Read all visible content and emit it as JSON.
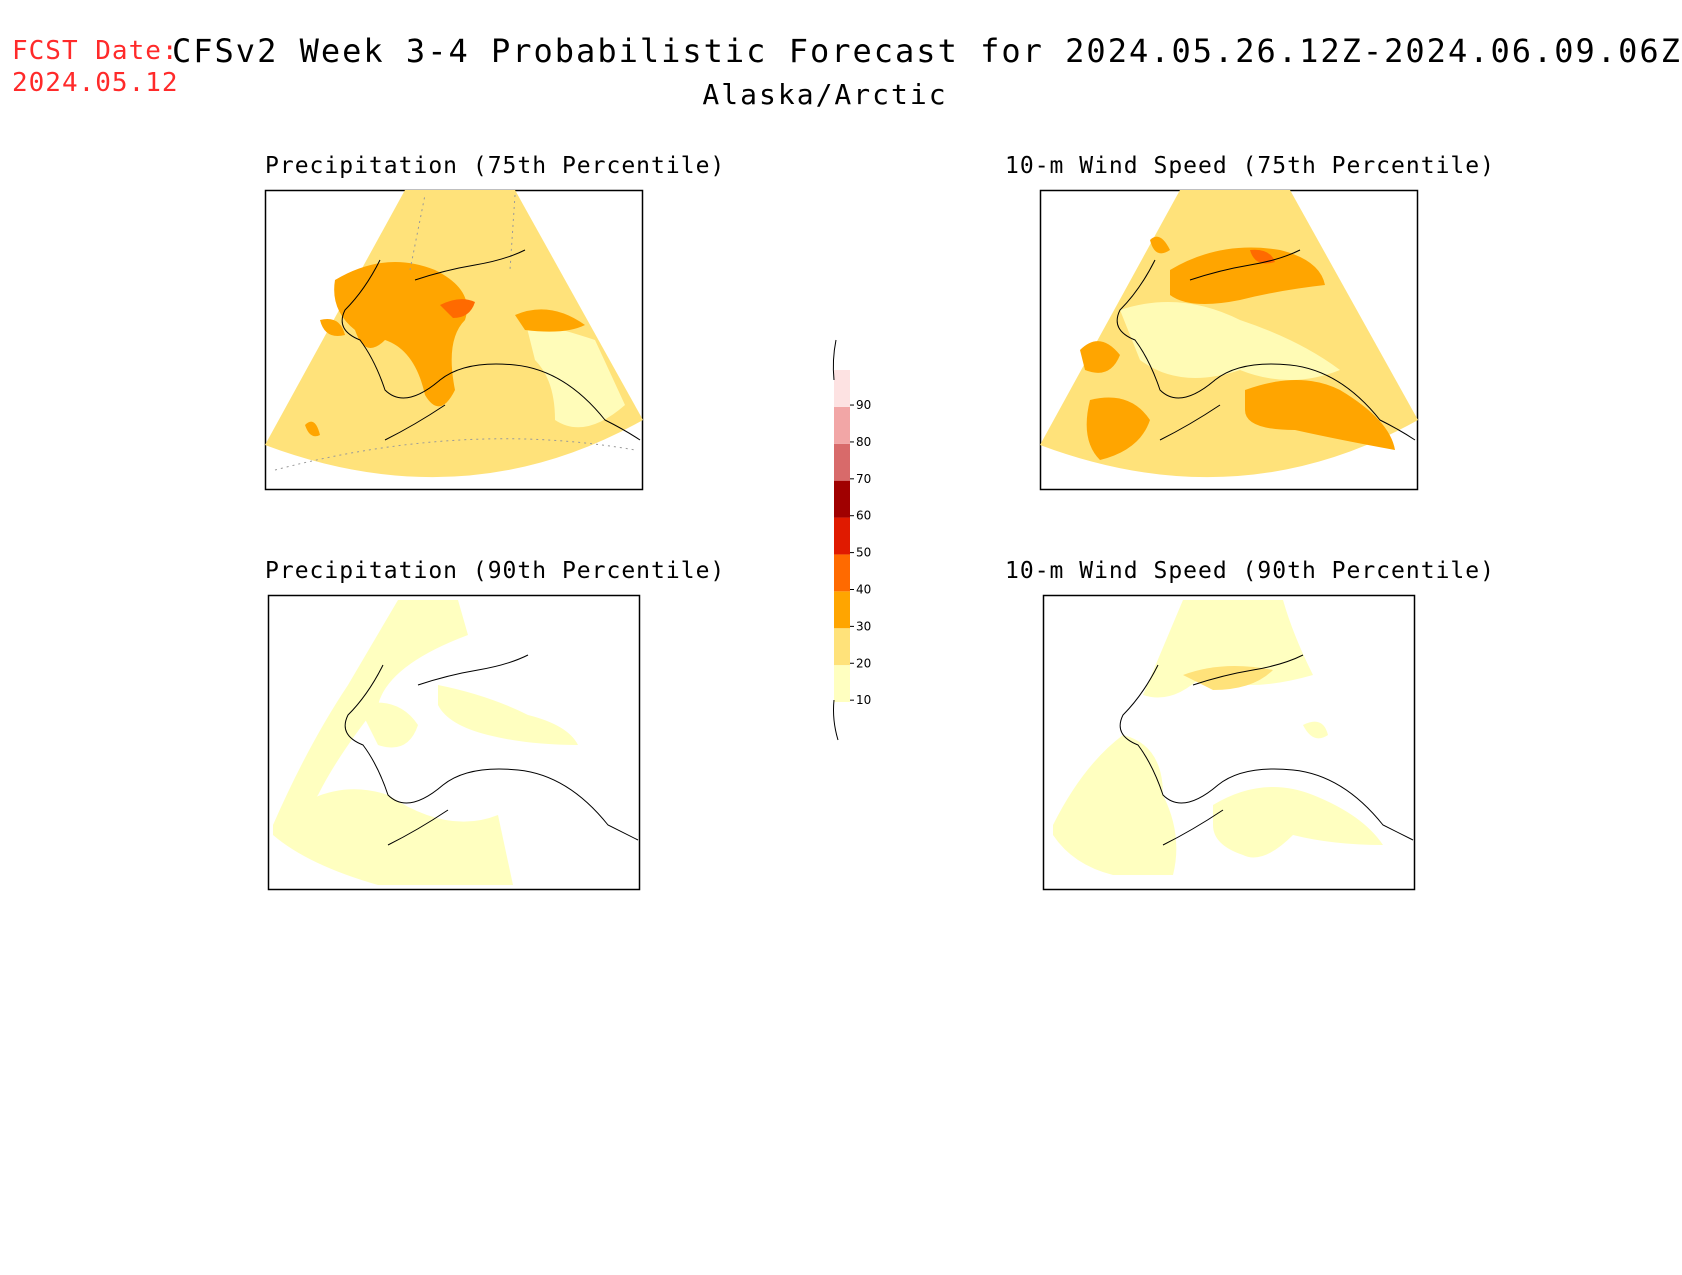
{
  "header": {
    "fcst_label": "FCST Date:",
    "fcst_date": "2024.05.12",
    "title": "CFSv2 Week 3-4 Probabilistic Forecast for 2024.05.26.12Z-2024.06.09.06Z",
    "region": "Alaska/Arctic"
  },
  "panels": [
    {
      "title": "Precipitation (75th Percentile)"
    },
    {
      "title": "10-m Wind Speed (75th Percentile)"
    },
    {
      "title": "Precipitation (90th Percentile)"
    },
    {
      "title": "10-m Wind Speed (90th Percentile)"
    }
  ],
  "colorbar": {
    "ticks": [
      "10",
      "20",
      "30",
      "40",
      "50",
      "60",
      "70",
      "80",
      "90"
    ],
    "colors": [
      "#ffffc0",
      "#ffe27a",
      "#ffa500",
      "#ff6a00",
      "#e01a00",
      "#a00000",
      "#d86a6a",
      "#f2a6a6",
      "#fde2e2"
    ]
  }
}
